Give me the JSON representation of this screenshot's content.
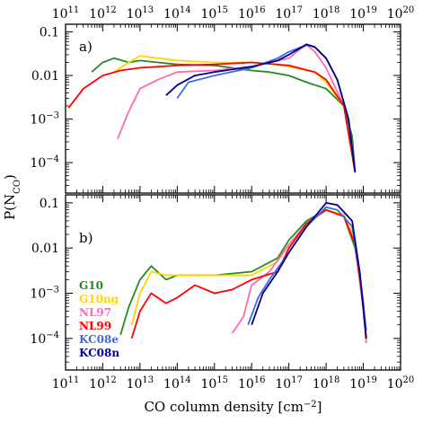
{
  "chart_data": {
    "type": "line",
    "xlabel": "CO column density [cm",
    "xlabel_exp": "−2",
    "xlabel_close": "]",
    "ylabel": "P(N",
    "ylabel_sub": "CO",
    "ylabel_close": ")",
    "x_log": true,
    "y_log": true,
    "xlim": [
      100000000000.0,
      1e+20
    ],
    "ylim": [
      2e-05,
      0.15
    ],
    "x_ticks": [
      {
        "base": "10",
        "exp": "11"
      },
      {
        "base": "10",
        "exp": "12"
      },
      {
        "base": "10",
        "exp": "13"
      },
      {
        "base": "10",
        "exp": "14"
      },
      {
        "base": "10",
        "exp": "15"
      },
      {
        "base": "10",
        "exp": "16"
      },
      {
        "base": "10",
        "exp": "17"
      },
      {
        "base": "10",
        "exp": "18"
      },
      {
        "base": "10",
        "exp": "19"
      },
      {
        "base": "10",
        "exp": "20"
      }
    ],
    "y_ticks": [
      {
        "label": "0.1",
        "exp": ""
      },
      {
        "label": "0.01",
        "exp": ""
      },
      {
        "label": "10",
        "exp": "−3"
      },
      {
        "label": "10",
        "exp": "−4"
      }
    ],
    "legend": {
      "placement": "bottom-left of panel b",
      "entries": [
        {
          "label": "G10",
          "color": "#228B22"
        },
        {
          "label": "G10ng",
          "color": "#FFD700"
        },
        {
          "label": "NL97",
          "color": "#FF69B4"
        },
        {
          "label": "NL99",
          "color": "#FF0000"
        },
        {
          "label": "KC08e",
          "color": "#4169E1"
        },
        {
          "label": "KC08n",
          "color": "#00008B"
        }
      ]
    },
    "panels": [
      {
        "label": "a)",
        "series": [
          {
            "name": "G10",
            "color": "#228B22",
            "points": [
              [
                500000000000.0,
                0.012
              ],
              [
                1000000000000.0,
                0.02
              ],
              [
                2000000000000.0,
                0.025
              ],
              [
                5000000000000.0,
                0.02
              ],
              [
                10000000000000.0,
                0.022
              ],
              [
                30000000000000.0,
                0.02
              ],
              [
                100000000000000.0,
                0.018
              ],
              [
                1000000000000000.0,
                0.017
              ],
              [
                1e+16,
                0.013
              ],
              [
                3e+16,
                0.012
              ],
              [
                1e+17,
                0.01
              ],
              [
                3e+17,
                0.007
              ],
              [
                1e+18,
                0.005
              ],
              [
                3e+18,
                0.002
              ],
              [
                5e+18,
                0.0004
              ],
              [
                6e+18,
                6e-05
              ]
            ]
          },
          {
            "name": "G10ng",
            "color": "#FFD700",
            "points": [
              [
                2000000000000.0,
                0.012
              ],
              [
                5000000000000.0,
                0.02
              ],
              [
                10000000000000.0,
                0.028
              ],
              [
                30000000000000.0,
                0.025
              ],
              [
                100000000000000.0,
                0.022
              ],
              [
                1000000000000000.0,
                0.02
              ],
              [
                1e+16,
                0.02
              ],
              [
                5e+16,
                0.018
              ],
              [
                1e+17,
                0.016
              ],
              [
                5e+17,
                0.012
              ],
              [
                1e+18,
                0.007
              ],
              [
                3e+18,
                0.002
              ],
              [
                6e+18,
                6e-05
              ]
            ]
          },
          {
            "name": "NL97",
            "color": "#FF69B4",
            "points": [
              [
                2500000000000.0,
                0.00035
              ],
              [
                5000000000000.0,
                0.0015
              ],
              [
                10000000000000.0,
                0.005
              ],
              [
                30000000000000.0,
                0.008
              ],
              [
                100000000000000.0,
                0.012
              ],
              [
                1000000000000000.0,
                0.013
              ],
              [
                1e+16,
                0.016
              ],
              [
                1e+17,
                0.025
              ],
              [
                2e+17,
                0.04
              ],
              [
                3e+17,
                0.05
              ],
              [
                5e+17,
                0.035
              ],
              [
                1e+18,
                0.015
              ],
              [
                3e+18,
                0.002
              ],
              [
                6e+18,
                6e-05
              ]
            ]
          },
          {
            "name": "NL99",
            "color": "#FF0000",
            "points": [
              [
                120000000000.0,
                0.0018
              ],
              [
                300000000000.0,
                0.005
              ],
              [
                1000000000000.0,
                0.01
              ],
              [
                3000000000000.0,
                0.013
              ],
              [
                10000000000000.0,
                0.015
              ],
              [
                100000000000000.0,
                0.017
              ],
              [
                1000000000000000.0,
                0.018
              ],
              [
                1e+16,
                0.02
              ],
              [
                1e+17,
                0.017
              ],
              [
                5e+17,
                0.012
              ],
              [
                1e+18,
                0.008
              ],
              [
                3e+18,
                0.002
              ],
              [
                6e+18,
                6e-05
              ]
            ]
          },
          {
            "name": "KC08e",
            "color": "#4169E1",
            "points": [
              [
                100000000000000.0,
                0.003
              ],
              [
                200000000000000.0,
                0.007
              ],
              [
                1000000000000000.0,
                0.01
              ],
              [
                1e+16,
                0.015
              ],
              [
                5e+16,
                0.025
              ],
              [
                1e+17,
                0.035
              ],
              [
                3e+17,
                0.05
              ],
              [
                5e+17,
                0.045
              ],
              [
                1e+18,
                0.025
              ],
              [
                2e+18,
                0.008
              ],
              [
                4e+18,
                0.001
              ],
              [
                6e+18,
                6e-05
              ]
            ]
          },
          {
            "name": "KC08n",
            "color": "#00008B",
            "points": [
              [
                50000000000000.0,
                0.0035
              ],
              [
                100000000000000.0,
                0.006
              ],
              [
                300000000000000.0,
                0.01
              ],
              [
                1000000000000000.0,
                0.012
              ],
              [
                1e+16,
                0.016
              ],
              [
                5e+16,
                0.022
              ],
              [
                1e+17,
                0.03
              ],
              [
                3e+17,
                0.052
              ],
              [
                5e+17,
                0.045
              ],
              [
                1e+18,
                0.025
              ],
              [
                2e+18,
                0.008
              ],
              [
                4e+18,
                0.001
              ],
              [
                6e+18,
                6e-05
              ]
            ]
          }
        ]
      },
      {
        "label": "b)",
        "series": [
          {
            "name": "G10",
            "color": "#228B22",
            "points": [
              [
                3000000000000.0,
                0.00012
              ],
              [
                5000000000000.0,
                0.0005
              ],
              [
                10000000000000.0,
                0.002
              ],
              [
                20000000000000.0,
                0.004
              ],
              [
                50000000000000.0,
                0.002
              ],
              [
                100000000000000.0,
                0.0025
              ],
              [
                1000000000000000.0,
                0.0025
              ],
              [
                1e+16,
                0.003
              ],
              [
                5e+16,
                0.006
              ],
              [
                1e+17,
                0.015
              ],
              [
                3e+17,
                0.04
              ],
              [
                1e+18,
                0.07
              ],
              [
                3e+18,
                0.05
              ],
              [
                6e+18,
                0.01
              ],
              [
                1e+19,
                0.0006
              ],
              [
                1.2e+19,
                8e-05
              ]
            ]
          },
          {
            "name": "G10ng",
            "color": "#FFD700",
            "points": [
              [
                6000000000000.0,
                0.0002
              ],
              [
                10000000000000.0,
                0.001
              ],
              [
                20000000000000.0,
                0.003
              ],
              [
                50000000000000.0,
                0.0025
              ],
              [
                100000000000000.0,
                0.0025
              ],
              [
                1000000000000000.0,
                0.0025
              ],
              [
                1e+16,
                0.0025
              ],
              [
                5e+16,
                0.005
              ],
              [
                1e+17,
                0.012
              ],
              [
                3e+17,
                0.035
              ],
              [
                1e+18,
                0.07
              ],
              [
                3e+18,
                0.055
              ],
              [
                6e+18,
                0.015
              ],
              [
                1e+19,
                0.0006
              ],
              [
                1.2e+19,
                8e-05
              ]
            ]
          },
          {
            "name": "NL97",
            "color": "#FF69B4",
            "points": [
              [
                3000000000000000.0,
                0.00013
              ],
              [
                6000000000000000.0,
                0.0003
              ],
              [
                1e+16,
                0.0015
              ],
              [
                3e+16,
                0.003
              ],
              [
                1e+17,
                0.012
              ],
              [
                3e+17,
                0.035
              ],
              [
                1e+18,
                0.07
              ],
              [
                3e+18,
                0.05
              ],
              [
                6e+18,
                0.012
              ],
              [
                1e+19,
                0.0004
              ],
              [
                1.2e+19,
                8e-05
              ]
            ]
          },
          {
            "name": "NL99",
            "color": "#FF0000",
            "points": [
              [
                6000000000000.0,
                0.0001
              ],
              [
                10000000000000.0,
                0.0004
              ],
              [
                20000000000000.0,
                0.001
              ],
              [
                50000000000000.0,
                0.0006
              ],
              [
                100000000000000.0,
                0.0008
              ],
              [
                300000000000000.0,
                0.0015
              ],
              [
                1000000000000000.0,
                0.001
              ],
              [
                3000000000000000.0,
                0.0012
              ],
              [
                1e+16,
                0.002
              ],
              [
                5e+16,
                0.003
              ],
              [
                1e+17,
                0.01
              ],
              [
                3e+17,
                0.035
              ],
              [
                1e+18,
                0.07
              ],
              [
                3e+18,
                0.05
              ],
              [
                6e+18,
                0.012
              ],
              [
                1e+19,
                0.0006
              ],
              [
                1.2e+19,
                0.0001
              ]
            ]
          },
          {
            "name": "KC08e",
            "color": "#4169E1",
            "points": [
              [
                8000000000000000.0,
                0.0002
              ],
              [
                1.5e+16,
                0.0008
              ],
              [
                3e+16,
                0.002
              ],
              [
                1e+17,
                0.008
              ],
              [
                3e+17,
                0.03
              ],
              [
                1e+18,
                0.08
              ],
              [
                2e+18,
                0.07
              ],
              [
                5e+18,
                0.03
              ],
              [
                8e+18,
                0.003
              ],
              [
                1.2e+19,
                0.00015
              ]
            ]
          },
          {
            "name": "KC08n",
            "color": "#00008B",
            "points": [
              [
                1e+16,
                0.0002
              ],
              [
                2e+16,
                0.001
              ],
              [
                5e+16,
                0.003
              ],
              [
                1e+17,
                0.008
              ],
              [
                3e+17,
                0.03
              ],
              [
                1e+18,
                0.1
              ],
              [
                2e+18,
                0.09
              ],
              [
                5e+18,
                0.04
              ],
              [
                8e+18,
                0.003
              ],
              [
                1.2e+19,
                0.0001
              ]
            ]
          }
        ]
      }
    ]
  }
}
